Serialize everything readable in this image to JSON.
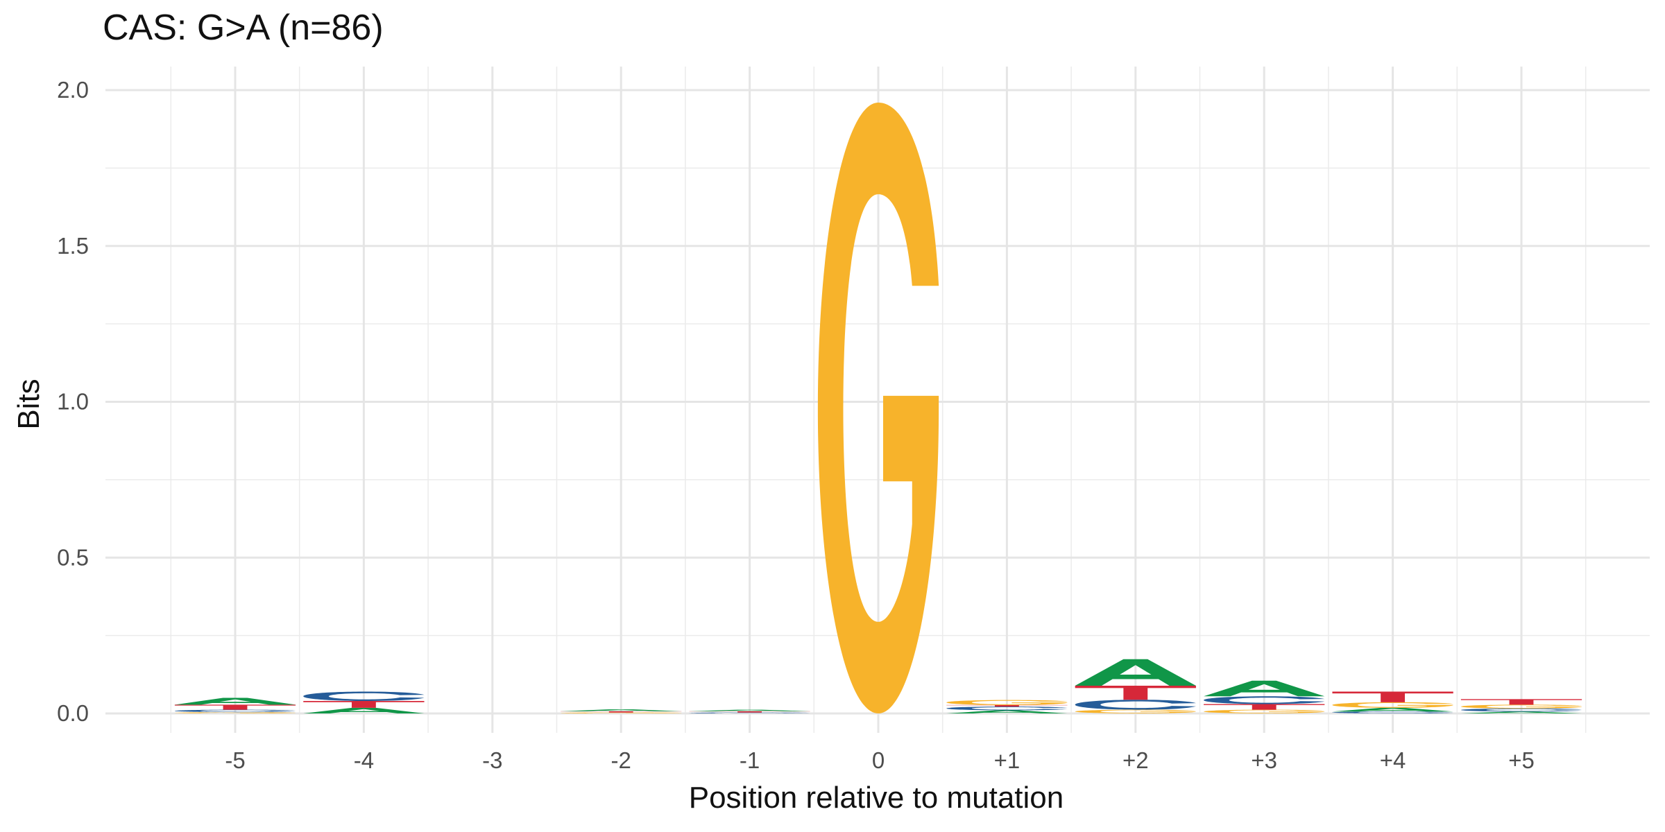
{
  "chart_data": {
    "type": "sequence-logo",
    "title": "CAS: G>A (n=86)",
    "xlabel": "Position relative to mutation",
    "ylabel": "Bits",
    "ylim": [
      -0.06,
      2.07
    ],
    "yticks": [
      "0.0",
      "0.5",
      "1.0",
      "1.5",
      "2.0"
    ],
    "ytick_values": [
      0,
      0.5,
      1,
      1.5,
      2
    ],
    "categories": [
      "-5",
      "-4",
      "-3",
      "-2",
      "-1",
      "0",
      "+1",
      "+2",
      "+3",
      "+4",
      "+5"
    ],
    "grid": true,
    "base_colors": {
      "A": "#109648",
      "C": "#255C99",
      "G": "#F7B32B",
      "T": "#D62839"
    },
    "positions": [
      {
        "pos": "-5",
        "stack": [
          {
            "base": "G",
            "bits": 0.004
          },
          {
            "base": "C",
            "bits": 0.008
          },
          {
            "base": "T",
            "bits": 0.016
          },
          {
            "base": "A",
            "bits": 0.022
          }
        ]
      },
      {
        "pos": "-4",
        "stack": [
          {
            "base": "A",
            "bits": 0.018
          },
          {
            "base": "T",
            "bits": 0.022
          },
          {
            "base": "C",
            "bits": 0.03
          }
        ]
      },
      {
        "pos": "-3",
        "stack": []
      },
      {
        "pos": "-2",
        "stack": [
          {
            "base": "G",
            "bits": 0.003
          },
          {
            "base": "T",
            "bits": 0.004
          },
          {
            "base": "A",
            "bits": 0.006
          }
        ]
      },
      {
        "pos": "-1",
        "stack": [
          {
            "base": "C",
            "bits": 0.003
          },
          {
            "base": "T",
            "bits": 0.004
          },
          {
            "base": "A",
            "bits": 0.005
          }
        ]
      },
      {
        "pos": "0",
        "stack": [
          {
            "base": "G",
            "bits": 1.96
          }
        ]
      },
      {
        "pos": "+1",
        "stack": [
          {
            "base": "A",
            "bits": 0.01
          },
          {
            "base": "C",
            "bits": 0.012
          },
          {
            "base": "T",
            "bits": 0.005
          },
          {
            "base": "G",
            "bits": 0.016
          }
        ]
      },
      {
        "pos": "+2",
        "stack": [
          {
            "base": "G",
            "bits": 0.012
          },
          {
            "base": "C",
            "bits": 0.032
          },
          {
            "base": "T",
            "bits": 0.045
          },
          {
            "base": "A",
            "bits": 0.085
          }
        ]
      },
      {
        "pos": "+3",
        "stack": [
          {
            "base": "G",
            "bits": 0.012
          },
          {
            "base": "T",
            "bits": 0.018
          },
          {
            "base": "C",
            "bits": 0.025
          },
          {
            "base": "A",
            "bits": 0.05
          }
        ]
      },
      {
        "pos": "+4",
        "stack": [
          {
            "base": "C",
            "bits": 0.006
          },
          {
            "base": "A",
            "bits": 0.012
          },
          {
            "base": "G",
            "bits": 0.018
          },
          {
            "base": "T",
            "bits": 0.034
          }
        ]
      },
      {
        "pos": "+5",
        "stack": [
          {
            "base": "A",
            "bits": 0.006
          },
          {
            "base": "C",
            "bits": 0.01
          },
          {
            "base": "G",
            "bits": 0.012
          },
          {
            "base": "T",
            "bits": 0.018
          }
        ]
      }
    ]
  }
}
